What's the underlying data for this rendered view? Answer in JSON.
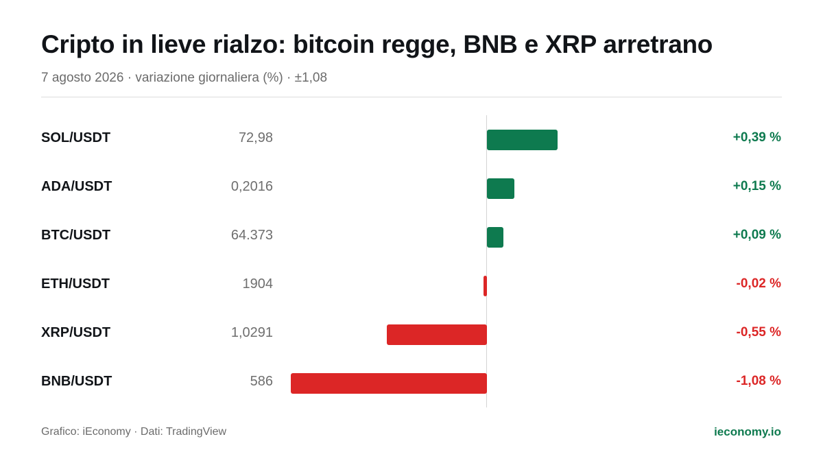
{
  "header": {
    "title": "Cripto in lieve rialzo: bitcoin regge, BNB e XRP arretrano",
    "subtitle": "7 agosto 2026 · variazione giornaliera (%) · ±1,08"
  },
  "footer": {
    "credit": "Grafico: iEconomy · Dati: TradingView",
    "site": "ieconomy.io"
  },
  "colors": {
    "positive": "#0e7a4f",
    "negative": "#dc2626",
    "axis": "#d4d4d4"
  },
  "chart_data": {
    "type": "bar",
    "orientation": "horizontal",
    "xlim": [
      -1.08,
      1.08
    ],
    "rows": [
      {
        "pair": "SOL/USDT",
        "price": "72,98",
        "change": 0.39,
        "change_label": "+0,39 %"
      },
      {
        "pair": "ADA/USDT",
        "price": "0,2016",
        "change": 0.15,
        "change_label": "+0,15 %"
      },
      {
        "pair": "BTC/USDT",
        "price": "64.373",
        "change": 0.09,
        "change_label": "+0,09 %"
      },
      {
        "pair": "ETH/USDT",
        "price": "1904",
        "change": -0.02,
        "change_label": "-0,02 %"
      },
      {
        "pair": "XRP/USDT",
        "price": "1,0291",
        "change": -0.55,
        "change_label": "-0,55 %"
      },
      {
        "pair": "BNB/USDT",
        "price": "586",
        "change": -1.08,
        "change_label": "-1,08 %"
      }
    ]
  }
}
